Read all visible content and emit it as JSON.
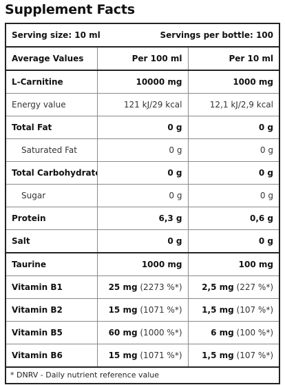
{
  "title": "Supplement Facts",
  "serving": {
    "size": "Serving size: 10 ml",
    "per_bottle": "Servings per bottle: 100"
  },
  "header": {
    "label": "Average Values",
    "col1": "Per 100 ml",
    "col2": "Per 10 ml"
  },
  "rows": [
    {
      "name": "L-Carnitine",
      "v100": "10000 mg",
      "v10": "1000 mg"
    },
    {
      "name": "Energy value",
      "v100": "121 kJ/29 kcal",
      "v10": "12,1 kJ/2,9 kcal"
    },
    {
      "name": "Total Fat",
      "v100": "0 g",
      "v10": "0 g"
    },
    {
      "name": "Saturated Fat",
      "v100": "0 g",
      "v10": "0 g"
    },
    {
      "name": "Total Carbohydrate",
      "v100": "0 g",
      "v10": "0 g"
    },
    {
      "name": "Sugar",
      "v100": "0 g",
      "v10": "0 g"
    },
    {
      "name": "Protein",
      "v100": "6,3 g",
      "v10": "0,6 g"
    },
    {
      "name": "Salt",
      "v100": "0 g",
      "v10": "0 g"
    },
    {
      "name": "Taurine",
      "v100": "1000 mg",
      "v10": "100 mg"
    },
    {
      "name": "Vitamin B1",
      "v100": "25 mg",
      "v100_dv": "(2273 %*)",
      "v10": "2,5 mg",
      "v10_dv": "(227 %*)"
    },
    {
      "name": "Vitamin B2",
      "v100": "15 mg",
      "v100_dv": "(1071 %*)",
      "v10": "1,5 mg",
      "v10_dv": "(107 %*)"
    },
    {
      "name": "Vitamin B5",
      "v100": "60 mg",
      "v100_dv": "(1000 %*)",
      "v10": "6 mg",
      "v10_dv": "(100 %*)"
    },
    {
      "name": "Vitamin B6",
      "v100": "15 mg",
      "v100_dv": "(1071 %*)",
      "v10": "1,5 mg",
      "v10_dv": "(107 %*)"
    }
  ],
  "footnote": "* DNRV - Daily nutrient reference value"
}
